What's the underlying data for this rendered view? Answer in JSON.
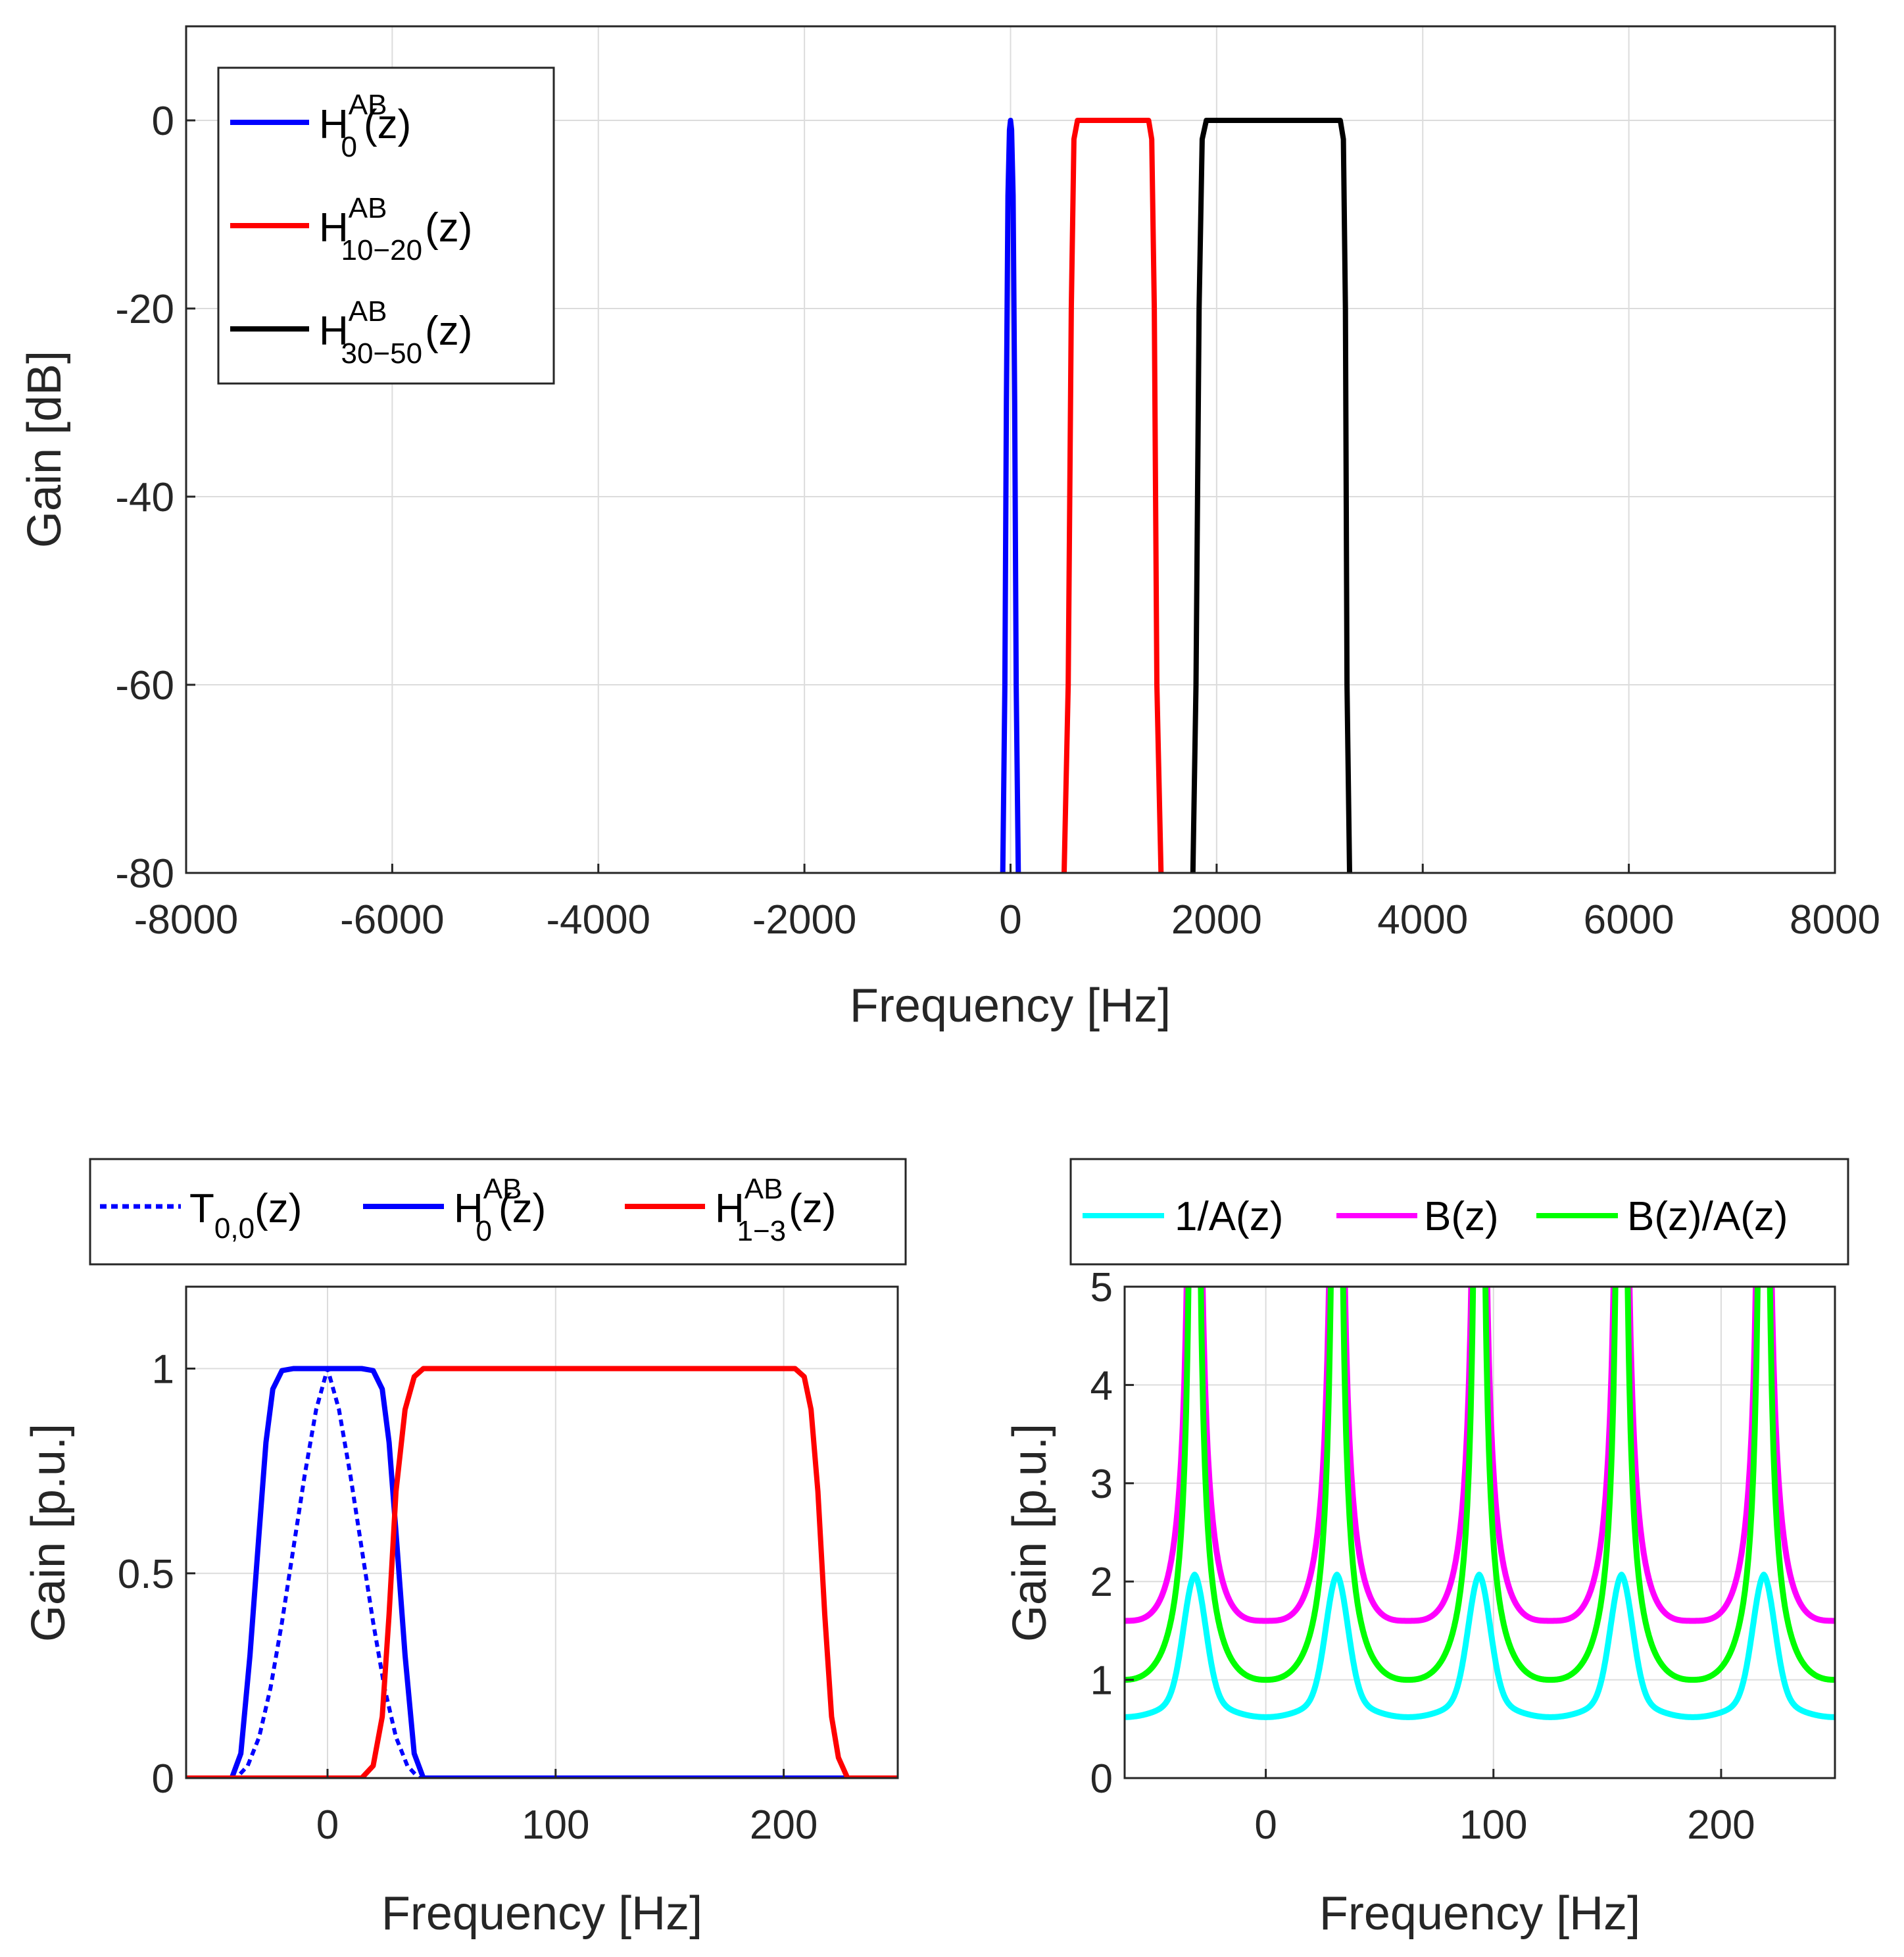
{
  "colors": {
    "blue": "#0000ff",
    "red": "#ff0000",
    "black": "#000000",
    "cyan": "#00ffff",
    "magenta": "#ff00ff",
    "green": "#00ff00"
  },
  "chart_data": [
    {
      "type": "line",
      "id": "top",
      "xlabel": "Frequency [Hz]",
      "ylabel": "Gain [dB]",
      "xlim": [
        -8000,
        8000
      ],
      "ylim": [
        -80,
        10
      ],
      "xticks": [
        "-8000",
        "-6000",
        "-4000",
        "-2000",
        "0",
        "2000",
        "4000",
        "6000",
        "8000"
      ],
      "yticks": [
        "0",
        "-20",
        "-40",
        "-60",
        "-80"
      ],
      "grid": true,
      "legend_position": "top-left",
      "legend": [
        {
          "base": "H",
          "sup": "AB",
          "sub": "0",
          "tail": "(z)"
        },
        {
          "base": "H",
          "sup": "AB",
          "sub": "10−20",
          "tail": "(z)"
        },
        {
          "base": "H",
          "sup": "AB",
          "sub": "30−50",
          "tail": "(z)"
        }
      ],
      "series": [
        {
          "name": "H0AB(z)",
          "color": "blue",
          "x": [
            -75,
            -55,
            -40,
            -25,
            -10,
            0,
            10,
            25,
            40,
            55,
            75
          ],
          "y": [
            -80,
            -60,
            -30,
            -8,
            -1,
            0,
            -1,
            -8,
            -30,
            -60,
            -80
          ]
        },
        {
          "name": "H10-20AB(z)",
          "color": "red",
          "x": [
            520,
            560,
            590,
            615,
            650,
            1000,
            1340,
            1370,
            1395,
            1420,
            1460
          ],
          "y": [
            -80,
            -60,
            -20,
            -2,
            0,
            0,
            0,
            -2,
            -20,
            -60,
            -80
          ]
        },
        {
          "name": "H30-50AB(z)",
          "color": "black",
          "x": [
            1770,
            1800,
            1830,
            1860,
            1900,
            2500,
            3200,
            3230,
            3250,
            3265,
            3290
          ],
          "y": [
            -80,
            -60,
            -20,
            -2,
            0,
            0,
            0,
            -2,
            -20,
            -60,
            -80
          ]
        }
      ]
    },
    {
      "type": "line",
      "id": "bottom-left",
      "xlabel": "Frequency [Hz]",
      "ylabel": "Gain [p.u.]",
      "xlim": [
        -62,
        250
      ],
      "ylim": [
        0,
        1.2
      ],
      "xticks": [
        "0",
        "100",
        "200"
      ],
      "yticks": [
        "0",
        "0.5",
        "1"
      ],
      "grid": true,
      "legend_position": "top",
      "legend": [
        {
          "base": "T",
          "sup": "",
          "sub": "0,0",
          "tail": "(z)"
        },
        {
          "base": "H",
          "sup": "AB",
          "sub": "0",
          "tail": "(z)"
        },
        {
          "base": "H",
          "sup": "AB",
          "sub": "1−3",
          "tail": "(z)"
        }
      ],
      "series": [
        {
          "name": "T0,0(z)",
          "color": "blue",
          "dashed": true,
          "x": [
            -62,
            -40,
            -35,
            -30,
            -25,
            -20,
            -15,
            -10,
            -5,
            0,
            5,
            10,
            15,
            20,
            25,
            30,
            35,
            40,
            250
          ],
          "y": [
            0,
            0,
            0.03,
            0.1,
            0.22,
            0.38,
            0.56,
            0.74,
            0.9,
            1.0,
            0.9,
            0.74,
            0.56,
            0.38,
            0.22,
            0.1,
            0.03,
            0,
            0
          ]
        },
        {
          "name": "H0AB(z)",
          "color": "blue",
          "x": [
            -62,
            -42,
            -38,
            -34,
            -30,
            -27,
            -24,
            -20,
            -15,
            0,
            15,
            20,
            24,
            27,
            30,
            34,
            38,
            42,
            250
          ],
          "y": [
            0,
            0,
            0.06,
            0.3,
            0.6,
            0.82,
            0.95,
            0.995,
            1.0,
            1.0,
            1.0,
            0.995,
            0.95,
            0.82,
            0.6,
            0.3,
            0.06,
            0,
            0
          ]
        },
        {
          "name": "H1-3AB(z)",
          "color": "red",
          "x": [
            -62,
            15,
            20,
            24,
            27,
            30,
            34,
            38,
            42,
            120,
            205,
            209,
            212,
            215,
            218,
            221,
            224,
            228,
            250
          ],
          "y": [
            0,
            0,
            0.03,
            0.15,
            0.4,
            0.7,
            0.9,
            0.98,
            1.0,
            1.0,
            1.0,
            0.98,
            0.9,
            0.7,
            0.4,
            0.15,
            0.05,
            0,
            0
          ]
        }
      ]
    },
    {
      "type": "line",
      "id": "bottom-right",
      "xlabel": "Frequency [Hz]",
      "ylabel": "Gain [p.u.]",
      "xlim": [
        -62,
        250
      ],
      "ylim": [
        0,
        5
      ],
      "xticks": [
        "0",
        "100",
        "200"
      ],
      "yticks": [
        "0",
        "1",
        "2",
        "3",
        "4",
        "5"
      ],
      "grid": true,
      "legend_position": "top",
      "legend": [
        {
          "base": "1/A(z)",
          "sup": "",
          "sub": "",
          "tail": ""
        },
        {
          "base": "B(z)",
          "sup": "",
          "sub": "",
          "tail": ""
        },
        {
          "base": "B(z)/A(z)",
          "sup": "",
          "sub": "",
          "tail": ""
        }
      ],
      "period": 62.5,
      "series": [
        {
          "name": "1/A(z)",
          "color": "cyan",
          "minimum": 0.62,
          "peak": 2.07,
          "peak_offset": 31.25
        },
        {
          "name": "B(z)",
          "color": "magenta",
          "minimum": 1.6,
          "peak": "above 5",
          "peak_offset": 31.25
        },
        {
          "name": "B(z)/A(z)",
          "color": "green",
          "minimum": 1.0,
          "peak": "above 5",
          "peak_offset": 31.25
        }
      ]
    }
  ]
}
